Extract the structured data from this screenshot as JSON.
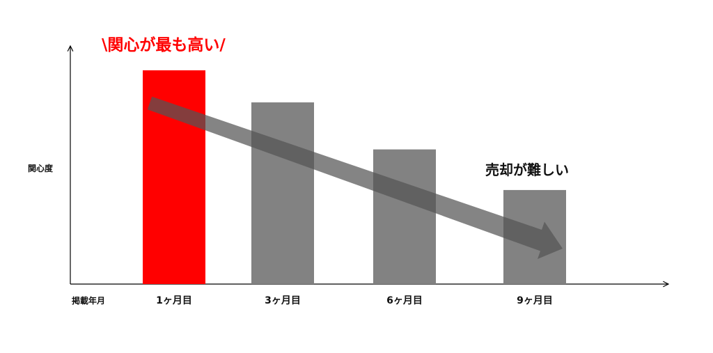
{
  "chart_data": {
    "type": "bar",
    "xlabel": "掲載年月",
    "ylabel": "関心度",
    "categories": [
      "1ヶ月目",
      "3ヶ月目",
      "6ヶ月目",
      "9ヶ月目"
    ],
    "values": [
      100,
      85,
      63,
      44
    ],
    "ylim": [
      0,
      100
    ],
    "grid": false,
    "highlight_index": 0,
    "colors": {
      "highlight": "#ff0000",
      "bar": "#828282",
      "trend_arrow": "#555555"
    },
    "annotations": {
      "top": "\\関心が最も高い/",
      "trend": "売却が難しい"
    }
  }
}
